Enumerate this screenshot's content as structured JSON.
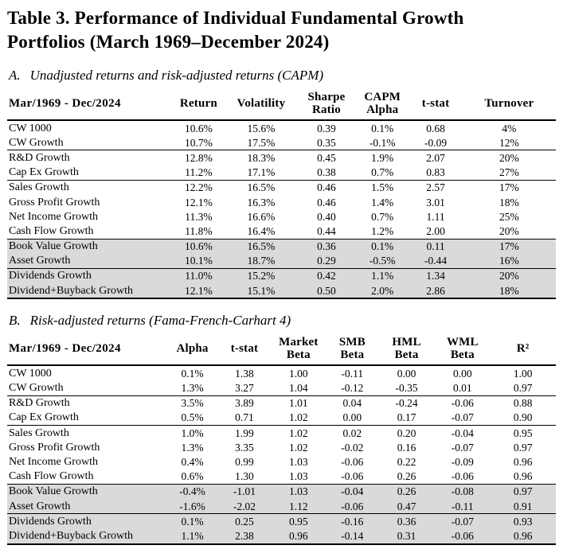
{
  "title": "Table 3. Performance of Individual Fundamental Growth Portfolios (March 1969–December 2024)",
  "colors": {
    "shaded_row": "#d9dad9",
    "text": "#000000",
    "background": "#ffffff"
  },
  "panels": {
    "a": {
      "heading_label": "A.",
      "heading_text": "Unadjusted returns and risk-adjusted returns (CAPM)",
      "period_label": "Mar/1969 - Dec/2024",
      "columns": [
        "Return",
        "Volatility",
        "Sharpe\nRatio",
        "CAPM\nAlpha",
        "t-stat",
        "Turnover"
      ],
      "rows": [
        {
          "label": "CW 1000",
          "values": [
            "10.6%",
            "15.6%",
            "0.39",
            "0.1%",
            "0.68",
            "4%"
          ],
          "shaded": false,
          "rule_above": false
        },
        {
          "label": "CW Growth",
          "values": [
            "10.7%",
            "17.5%",
            "0.35",
            "-0.1%",
            "-0.09",
            "12%"
          ],
          "shaded": false,
          "rule_above": false
        },
        {
          "label": "R&D Growth",
          "values": [
            "12.8%",
            "18.3%",
            "0.45",
            "1.9%",
            "2.07",
            "20%"
          ],
          "shaded": false,
          "rule_above": true
        },
        {
          "label": "Cap Ex Growth",
          "values": [
            "11.2%",
            "17.1%",
            "0.38",
            "0.7%",
            "0.83",
            "27%"
          ],
          "shaded": false,
          "rule_above": false
        },
        {
          "label": "Sales Growth",
          "values": [
            "12.2%",
            "16.5%",
            "0.46",
            "1.5%",
            "2.57",
            "17%"
          ],
          "shaded": false,
          "rule_above": true
        },
        {
          "label": "Gross Profit Growth",
          "values": [
            "12.1%",
            "16.3%",
            "0.46",
            "1.4%",
            "3.01",
            "18%"
          ],
          "shaded": false,
          "rule_above": false
        },
        {
          "label": "Net Income Growth",
          "values": [
            "11.3%",
            "16.6%",
            "0.40",
            "0.7%",
            "1.11",
            "25%"
          ],
          "shaded": false,
          "rule_above": false
        },
        {
          "label": "Cash Flow Growth",
          "values": [
            "11.8%",
            "16.4%",
            "0.44",
            "1.2%",
            "2.00",
            "20%"
          ],
          "shaded": false,
          "rule_above": false
        },
        {
          "label": "Book Value Growth",
          "values": [
            "10.6%",
            "16.5%",
            "0.36",
            "0.1%",
            "0.11",
            "17%"
          ],
          "shaded": true,
          "rule_above": true
        },
        {
          "label": "Asset Growth",
          "values": [
            "10.1%",
            "18.7%",
            "0.29",
            "-0.5%",
            "-0.44",
            "16%"
          ],
          "shaded": true,
          "rule_above": false
        },
        {
          "label": "Dividends Growth",
          "values": [
            "11.0%",
            "15.2%",
            "0.42",
            "1.1%",
            "1.34",
            "20%"
          ],
          "shaded": true,
          "rule_above": true
        },
        {
          "label": "Dividend+Buyback Growth",
          "values": [
            "12.1%",
            "15.1%",
            "0.50",
            "2.0%",
            "2.86",
            "18%"
          ],
          "shaded": true,
          "rule_above": false
        }
      ]
    },
    "b": {
      "heading_label": "B.",
      "heading_text": "Risk-adjusted returns (Fama-French-Carhart 4)",
      "period_label": "Mar/1969 - Dec/2024",
      "columns": [
        "Alpha",
        "t-stat",
        "Market\nBeta",
        "SMB\nBeta",
        "HML\nBeta",
        "WML\nBeta",
        "R²"
      ],
      "rows": [
        {
          "label": "CW 1000",
          "values": [
            "0.1%",
            "1.38",
            "1.00",
            "-0.11",
            "0.00",
            "0.00",
            "1.00"
          ],
          "shaded": false,
          "rule_above": false
        },
        {
          "label": "CW Growth",
          "values": [
            "1.3%",
            "3.27",
            "1.04",
            "-0.12",
            "-0.35",
            "0.01",
            "0.97"
          ],
          "shaded": false,
          "rule_above": false
        },
        {
          "label": "R&D Growth",
          "values": [
            "3.5%",
            "3.89",
            "1.01",
            "0.04",
            "-0.24",
            "-0.06",
            "0.88"
          ],
          "shaded": false,
          "rule_above": true
        },
        {
          "label": "Cap Ex Growth",
          "values": [
            "0.5%",
            "0.71",
            "1.02",
            "0.00",
            "0.17",
            "-0.07",
            "0.90"
          ],
          "shaded": false,
          "rule_above": false
        },
        {
          "label": "Sales Growth",
          "values": [
            "1.0%",
            "1.99",
            "1.02",
            "0.02",
            "0.20",
            "-0.04",
            "0.95"
          ],
          "shaded": false,
          "rule_above": true
        },
        {
          "label": "Gross Profit Growth",
          "values": [
            "1.3%",
            "3.35",
            "1.02",
            "-0.02",
            "0.16",
            "-0.07",
            "0.97"
          ],
          "shaded": false,
          "rule_above": false
        },
        {
          "label": "Net Income Growth",
          "values": [
            "0.4%",
            "0.99",
            "1.03",
            "-0.06",
            "0.22",
            "-0.09",
            "0.96"
          ],
          "shaded": false,
          "rule_above": false
        },
        {
          "label": "Cash Flow Growth",
          "values": [
            "0.6%",
            "1.30",
            "1.03",
            "-0.06",
            "0.26",
            "-0.06",
            "0.96"
          ],
          "shaded": false,
          "rule_above": false
        },
        {
          "label": "Book Value Growth",
          "values": [
            "-0.4%",
            "-1.01",
            "1.03",
            "-0.04",
            "0.26",
            "-0.08",
            "0.97"
          ],
          "shaded": true,
          "rule_above": true
        },
        {
          "label": "Asset Growth",
          "values": [
            "-1.6%",
            "-2.02",
            "1.12",
            "-0.06",
            "0.47",
            "-0.11",
            "0.91"
          ],
          "shaded": true,
          "rule_above": false
        },
        {
          "label": "Dividends Growth",
          "values": [
            "0.1%",
            "0.25",
            "0.95",
            "-0.16",
            "0.36",
            "-0.07",
            "0.93"
          ],
          "shaded": true,
          "rule_above": true
        },
        {
          "label": "Dividend+Buyback Growth",
          "values": [
            "1.1%",
            "2.38",
            "0.96",
            "-0.14",
            "0.31",
            "-0.06",
            "0.96"
          ],
          "shaded": true,
          "rule_above": false
        }
      ]
    }
  }
}
